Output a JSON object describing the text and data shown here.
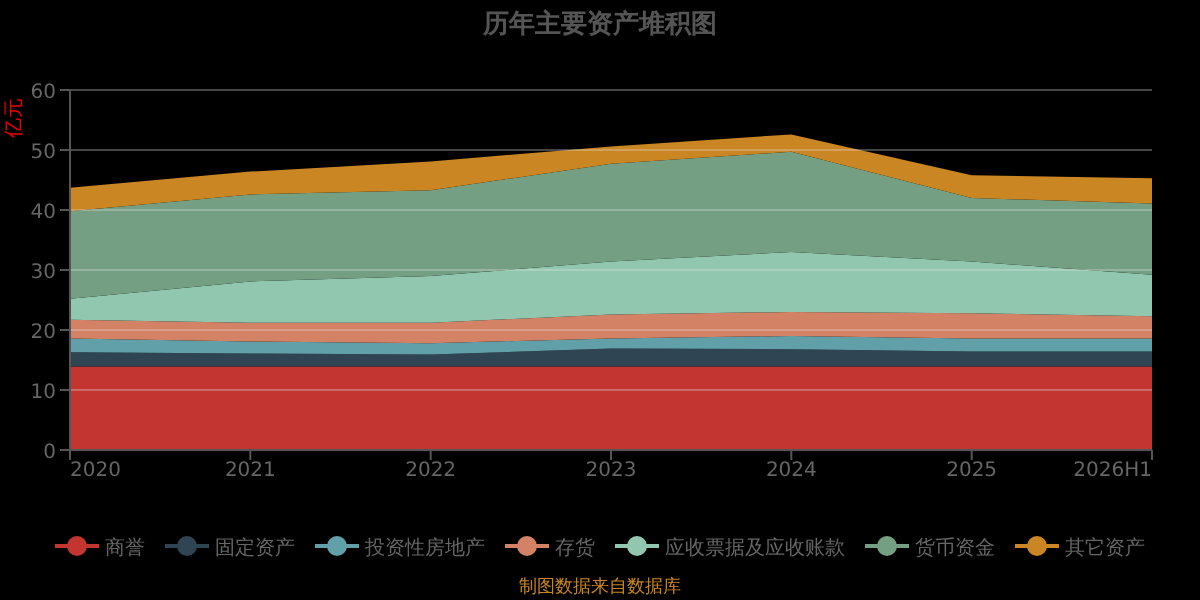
{
  "chart_data": {
    "type": "area",
    "title": "历年主要资产堆积图",
    "ylabel": "亿元",
    "categories": [
      "2020",
      "2021",
      "2022",
      "2023",
      "2024",
      "2025",
      "2026H1"
    ],
    "stacked": true,
    "series": [
      {
        "name": "商誉",
        "color": "#c23531",
        "values": [
          13.9,
          13.9,
          13.9,
          13.9,
          13.9,
          13.9,
          13.9
        ]
      },
      {
        "name": "固定资产",
        "color": "#2f4554",
        "values": [
          2.4,
          2.2,
          2.0,
          3.0,
          2.9,
          2.5,
          2.5
        ]
      },
      {
        "name": "投资性房地产",
        "color": "#61a0a8",
        "values": [
          2.3,
          2.0,
          1.9,
          1.7,
          2.2,
          2.2,
          2.2
        ]
      },
      {
        "name": "存货",
        "color": "#d48265",
        "values": [
          3.1,
          3.1,
          3.4,
          4.0,
          4.0,
          4.2,
          3.7
        ]
      },
      {
        "name": "应收票据及应收账款",
        "color": "#91c7ae",
        "values": [
          3.5,
          6.9,
          7.8,
          8.8,
          10.0,
          8.6,
          6.9
        ]
      },
      {
        "name": "货币资金",
        "color": "#749f83",
        "values": [
          14.6,
          14.5,
          14.3,
          16.3,
          16.7,
          10.6,
          11.9
        ]
      },
      {
        "name": "其它资产",
        "color": "#ca8622",
        "values": [
          3.9,
          3.8,
          4.8,
          2.9,
          2.9,
          3.8,
          4.2
        ]
      }
    ],
    "ylim": [
      0,
      60
    ],
    "yticks": [
      0,
      10,
      20,
      30,
      40,
      50,
      60
    ],
    "grid": "y",
    "legend": "bottom",
    "annotations": [
      "制图数据来自数据库"
    ]
  }
}
